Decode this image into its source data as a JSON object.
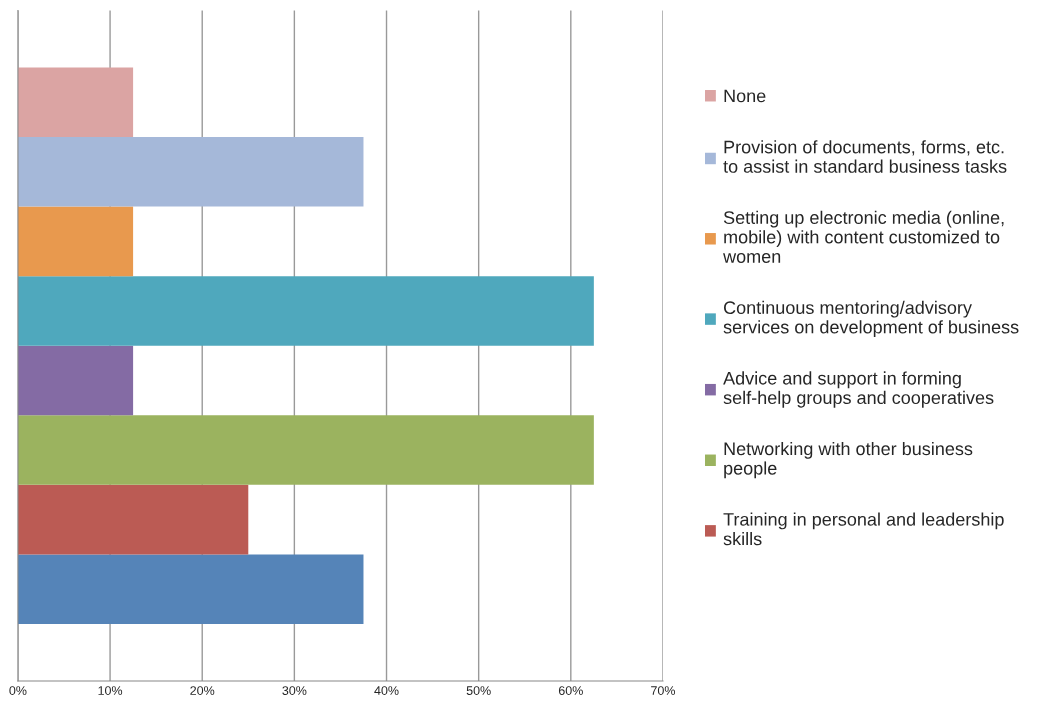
{
  "chart_data": {
    "type": "bar",
    "orientation": "horizontal",
    "categories": [
      null
    ],
    "series": [
      {
        "color": "#5584b8",
        "values": [
          37.5
        ]
      },
      {
        "name": "Training in personal and leadership skills",
        "color": "#bb5b54",
        "values": [
          25
        ]
      },
      {
        "name": "Networking with other business people",
        "color": "#9bb35f",
        "values": [
          62.5
        ]
      },
      {
        "name": "Advice and support in forming self-help groups and cooperatives",
        "color": "#846ba4",
        "values": [
          12.5
        ]
      },
      {
        "name": "Continuous mentoring/advisory services on development of business",
        "color": "#4fa8bd",
        "values": [
          62.5
        ]
      },
      {
        "name": "Setting up electronic media (online, mobile) with content customized to women",
        "color": "#e8994e",
        "values": [
          12.5
        ]
      },
      {
        "name": "Provision of documents, forms, etc. to assist in standard business tasks",
        "color": "#a5b8d9",
        "values": [
          37.5
        ]
      },
      {
        "name": "None",
        "color": "#dba4a3",
        "values": [
          12.5
        ]
      }
    ],
    "xlim": [
      0,
      70
    ],
    "xticks": [
      {
        "value": 0,
        "label": "0%"
      },
      {
        "value": 10,
        "label": "10%"
      },
      {
        "value": 20,
        "label": "20%"
      },
      {
        "value": 30,
        "label": "30%"
      },
      {
        "value": 40,
        "label": "40%"
      },
      {
        "value": 50,
        "label": "50%"
      },
      {
        "value": 60,
        "label": "60%"
      },
      {
        "value": 70,
        "label": "70%"
      }
    ],
    "grid": "x",
    "legend": "right",
    "tick_labels": "x"
  }
}
